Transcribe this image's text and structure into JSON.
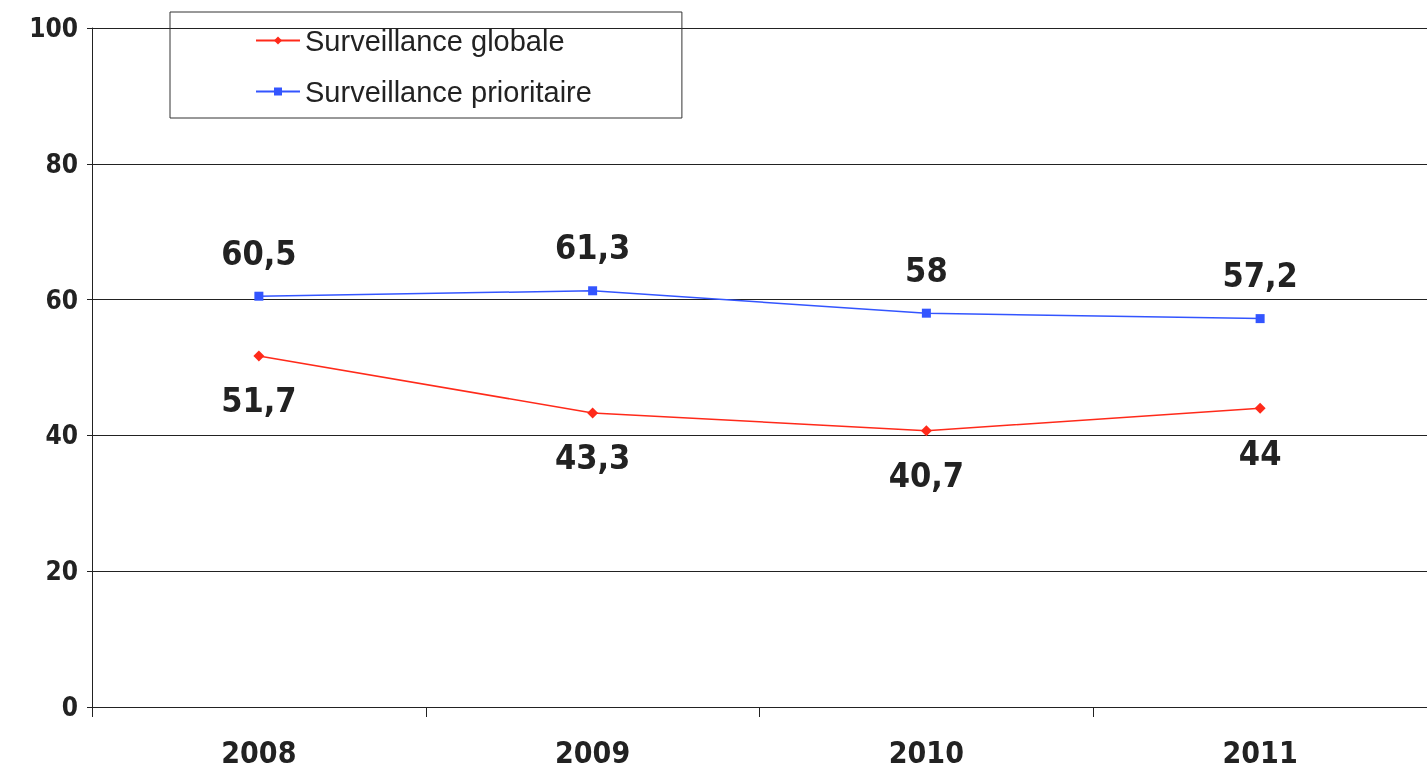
{
  "chart_data": {
    "type": "line",
    "categories": [
      "2008",
      "2009",
      "2010",
      "2011"
    ],
    "series": [
      {
        "name": "Surveillance globale",
        "color": "#ff2a1a",
        "marker": "diamond",
        "values": [
          51.7,
          43.3,
          40.7,
          44
        ],
        "value_labels": [
          "51,7",
          "43,3",
          "40,7",
          "44"
        ]
      },
      {
        "name": "Surveillance prioritaire",
        "color": "#3355ff",
        "marker": "square",
        "values": [
          60.5,
          61.3,
          58,
          57.2
        ],
        "value_labels": [
          "60,5",
          "61,3",
          "58",
          "57,2"
        ]
      }
    ],
    "ylim": [
      0,
      100
    ],
    "yticks": [
      0,
      20,
      40,
      60,
      80,
      100
    ],
    "grid": "y",
    "legend": "top left",
    "line_style": "solid"
  }
}
